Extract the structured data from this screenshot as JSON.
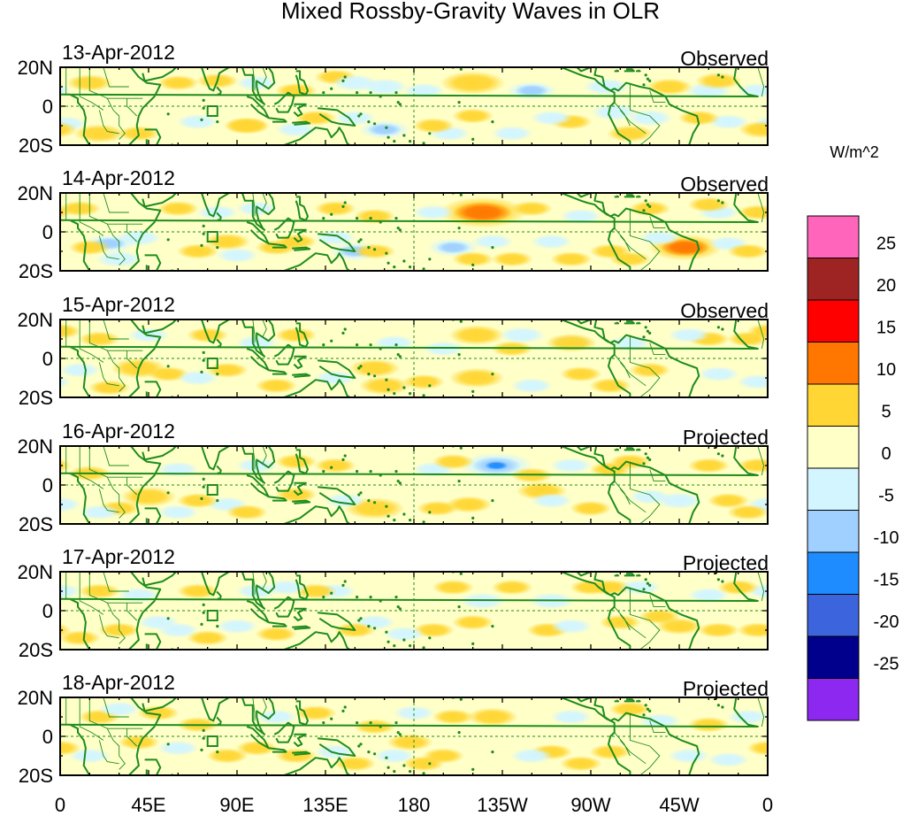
{
  "title": "Mixed Rossby-Gravity Waves in OLR",
  "colorbar": {
    "units": "W/m^2",
    "tick_labels": [
      "25",
      "20",
      "15",
      "10",
      "5",
      "0",
      "-5",
      "-10",
      "-15",
      "-20",
      "-25"
    ],
    "colors": [
      "#ff66bb",
      "#9e2424",
      "#ff0000",
      "#ff7700",
      "#ffd633",
      "#ffffc8",
      "#d2f5ff",
      "#a0d0ff",
      "#1e8cff",
      "#3c64dc",
      "#00008c",
      "#8c28f0"
    ]
  },
  "panels": [
    {
      "date": "13-Apr-2012",
      "status": "Observed"
    },
    {
      "date": "14-Apr-2012",
      "status": "Observed"
    },
    {
      "date": "15-Apr-2012",
      "status": "Observed"
    },
    {
      "date": "16-Apr-2012",
      "status": "Projected"
    },
    {
      "date": "17-Apr-2012",
      "status": "Projected"
    },
    {
      "date": "18-Apr-2012",
      "status": "Projected"
    }
  ],
  "lat_labels": [
    "20N",
    "0",
    "20S"
  ],
  "lon_labels": [
    "0",
    "45E",
    "90E",
    "135E",
    "180",
    "135W",
    "90W",
    "45W",
    "0"
  ],
  "anomalies": [
    [
      [
        140,
        15,
        3
      ],
      [
        150,
        12,
        -4
      ],
      [
        165,
        10,
        -4
      ],
      [
        165,
        -12,
        -5
      ],
      [
        -60,
        -6,
        -4
      ],
      [
        -78,
        -3,
        -4
      ],
      [
        -162,
        -14,
        -3
      ],
      [
        -150,
        12,
        8
      ],
      [
        -120,
        8,
        -5
      ],
      [
        -82,
        10,
        -4
      ],
      [
        -100,
        -8,
        3
      ],
      [
        -30,
        8,
        -4
      ],
      [
        -25,
        13,
        4
      ],
      [
        -20,
        -8,
        -3
      ],
      [
        -110,
        -6,
        -3
      ],
      [
        150,
        -6,
        -3
      ],
      [
        120,
        -12,
        -3
      ],
      [
        95,
        -10,
        3
      ],
      [
        15,
        12,
        4
      ],
      [
        20,
        -14,
        5
      ],
      [
        40,
        -14,
        3
      ],
      [
        3,
        -9,
        -3
      ],
      [
        -5,
        8,
        -3
      ],
      [
        -3,
        -12,
        4
      ],
      [
        60,
        12,
        3
      ],
      [
        80,
        13,
        3
      ],
      [
        70,
        -8,
        -3
      ],
      [
        100,
        12,
        -3
      ],
      [
        120,
        8,
        3
      ],
      [
        130,
        -6,
        3
      ],
      [
        95,
        -10,
        4
      ],
      [
        -35,
        -6,
        3
      ],
      [
        -70,
        -14,
        4
      ],
      [
        -50,
        10,
        4
      ],
      [
        -150,
        -5,
        3
      ],
      [
        -130,
        -14,
        -3
      ],
      [
        -170,
        -10,
        3
      ],
      [
        -175,
        8,
        -3
      ]
    ],
    [
      [
        -145,
        10,
        13
      ],
      [
        -160,
        -8,
        -5
      ],
      [
        -140,
        -5,
        -3
      ],
      [
        -110,
        -5,
        -3
      ],
      [
        -95,
        8,
        -3
      ],
      [
        -120,
        12,
        3
      ],
      [
        -42,
        -8,
        10
      ],
      [
        -55,
        -3,
        -3
      ],
      [
        -20,
        -6,
        -3
      ],
      [
        -25,
        10,
        -3
      ],
      [
        150,
        -10,
        -5
      ],
      [
        140,
        -3,
        -3
      ],
      [
        140,
        12,
        3
      ],
      [
        160,
        8,
        3
      ],
      [
        160,
        -10,
        3
      ],
      [
        120,
        -5,
        3
      ],
      [
        100,
        12,
        -3
      ],
      [
        110,
        -8,
        3
      ],
      [
        85,
        -5,
        4
      ],
      [
        40,
        -3,
        -4
      ],
      [
        25,
        -6,
        -5
      ],
      [
        10,
        12,
        3
      ],
      [
        15,
        -8,
        3
      ],
      [
        30,
        -14,
        -4
      ],
      [
        60,
        12,
        3
      ],
      [
        70,
        -10,
        3
      ],
      [
        80,
        10,
        -3
      ],
      [
        90,
        -12,
        -3
      ],
      [
        -5,
        10,
        3
      ],
      [
        -10,
        -10,
        3
      ],
      [
        -80,
        -10,
        3
      ],
      [
        -70,
        -14,
        3
      ],
      [
        -30,
        14,
        3
      ],
      [
        -150,
        -14,
        3
      ],
      [
        -170,
        10,
        -3
      ],
      [
        -100,
        -14,
        3
      ],
      [
        -130,
        -14,
        3
      ],
      [
        -60,
        12,
        3
      ]
    ],
    [
      [
        -148,
        12,
        6
      ],
      [
        -125,
        12,
        -4
      ],
      [
        -148,
        -10,
        6
      ],
      [
        -165,
        5,
        -3
      ],
      [
        -130,
        5,
        3
      ],
      [
        -100,
        8,
        -3
      ],
      [
        -100,
        8,
        5
      ],
      [
        -95,
        -8,
        3
      ],
      [
        -70,
        8,
        -3
      ],
      [
        -60,
        -6,
        3
      ],
      [
        -30,
        10,
        3
      ],
      [
        -25,
        -8,
        -3
      ],
      [
        40,
        -5,
        6
      ],
      [
        55,
        -8,
        3
      ],
      [
        70,
        -10,
        -3
      ],
      [
        85,
        -6,
        3
      ],
      [
        100,
        8,
        -3
      ],
      [
        120,
        12,
        3
      ],
      [
        140,
        -10,
        -3
      ],
      [
        160,
        -5,
        5
      ],
      [
        165,
        -14,
        5
      ],
      [
        170,
        8,
        -3
      ],
      [
        20,
        10,
        3
      ],
      [
        10,
        -6,
        -3
      ],
      [
        0,
        14,
        3
      ],
      [
        -10,
        10,
        3
      ],
      [
        25,
        -15,
        3
      ],
      [
        45,
        12,
        -3
      ],
      [
        75,
        12,
        3
      ],
      [
        110,
        -14,
        3
      ],
      [
        -5,
        -12,
        -3
      ],
      [
        -40,
        12,
        -3
      ],
      [
        -175,
        -12,
        3
      ],
      [
        -80,
        -14,
        3
      ],
      [
        -120,
        -14,
        -3
      ]
    ],
    [
      [
        -138,
        10,
        -10
      ],
      [
        -120,
        5,
        3
      ],
      [
        -115,
        -3,
        5
      ],
      [
        -152,
        -10,
        4
      ],
      [
        -168,
        -12,
        3
      ],
      [
        -100,
        10,
        -3
      ],
      [
        -110,
        -8,
        -3
      ],
      [
        -80,
        8,
        3
      ],
      [
        -60,
        -6,
        -3
      ],
      [
        -45,
        -8,
        -4
      ],
      [
        -30,
        10,
        3
      ],
      [
        -20,
        -8,
        3
      ],
      [
        160,
        -12,
        7
      ],
      [
        145,
        -8,
        -3
      ],
      [
        140,
        10,
        3
      ],
      [
        120,
        -5,
        3
      ],
      [
        100,
        10,
        -3
      ],
      [
        85,
        -10,
        -3
      ],
      [
        60,
        8,
        -3
      ],
      [
        70,
        -8,
        3
      ],
      [
        45,
        -6,
        6
      ],
      [
        30,
        -12,
        3
      ],
      [
        15,
        6,
        3
      ],
      [
        20,
        -14,
        -3
      ],
      [
        -5,
        10,
        3
      ],
      [
        0,
        -10,
        -3
      ],
      [
        -70,
        12,
        3
      ],
      [
        -90,
        -12,
        3
      ],
      [
        -170,
        8,
        -3
      ],
      [
        -160,
        12,
        3
      ],
      [
        120,
        12,
        3
      ],
      [
        95,
        -14,
        3
      ],
      [
        60,
        -14,
        -3
      ],
      [
        -10,
        -14,
        3
      ]
    ],
    [
      [
        -145,
        5,
        -4
      ],
      [
        -110,
        5,
        -4
      ],
      [
        -112,
        -10,
        3
      ],
      [
        -150,
        -6,
        3
      ],
      [
        -170,
        -10,
        3
      ],
      [
        -100,
        -8,
        -3
      ],
      [
        -80,
        12,
        3
      ],
      [
        -75,
        -6,
        3
      ],
      [
        -55,
        -3,
        3
      ],
      [
        -45,
        -8,
        4
      ],
      [
        -30,
        8,
        -3
      ],
      [
        -25,
        -10,
        3
      ],
      [
        160,
        -6,
        -3
      ],
      [
        150,
        -10,
        3
      ],
      [
        140,
        10,
        -3
      ],
      [
        130,
        10,
        3
      ],
      [
        110,
        -12,
        3
      ],
      [
        100,
        10,
        -3
      ],
      [
        90,
        -8,
        -3
      ],
      [
        70,
        10,
        3
      ],
      [
        60,
        -10,
        -3
      ],
      [
        50,
        -6,
        -3
      ],
      [
        40,
        8,
        -3
      ],
      [
        30,
        -10,
        3
      ],
      [
        20,
        10,
        3
      ],
      [
        10,
        -14,
        3
      ],
      [
        0,
        10,
        -3
      ],
      [
        -5,
        -10,
        3
      ],
      [
        -160,
        12,
        3
      ],
      [
        -130,
        12,
        3
      ],
      [
        175,
        -12,
        -3
      ],
      [
        -90,
        12,
        3
      ],
      [
        -65,
        12,
        -3
      ],
      [
        -15,
        12,
        3
      ],
      [
        75,
        -14,
        3
      ],
      [
        115,
        12,
        -3
      ]
    ],
    [
      [
        -140,
        10,
        5
      ],
      [
        -165,
        -10,
        3
      ],
      [
        -160,
        10,
        3
      ],
      [
        178,
        -3,
        4
      ],
      [
        170,
        -10,
        -3
      ],
      [
        160,
        5,
        3
      ],
      [
        140,
        -8,
        -3
      ],
      [
        120,
        -10,
        3
      ],
      [
        110,
        10,
        -3
      ],
      [
        100,
        -6,
        3
      ],
      [
        85,
        -10,
        3
      ],
      [
        70,
        6,
        3
      ],
      [
        60,
        -6,
        -3
      ],
      [
        40,
        -3,
        3
      ],
      [
        20,
        10,
        3
      ],
      [
        15,
        -10,
        -3
      ],
      [
        0,
        -6,
        3
      ],
      [
        -10,
        10,
        -3
      ],
      [
        -40,
        -10,
        -3
      ],
      [
        -30,
        6,
        3
      ],
      [
        -55,
        8,
        -3
      ],
      [
        -80,
        -8,
        3
      ],
      [
        -100,
        10,
        -3
      ],
      [
        -110,
        -8,
        3
      ],
      [
        -120,
        -10,
        -3
      ],
      [
        -95,
        -14,
        3
      ],
      [
        -70,
        14,
        3
      ],
      [
        -20,
        -12,
        -3
      ],
      [
        30,
        14,
        -3
      ],
      [
        50,
        12,
        3
      ],
      [
        130,
        12,
        3
      ],
      [
        150,
        -14,
        3
      ],
      [
        -180,
        12,
        -3
      ],
      [
        -175,
        -14,
        3
      ]
    ]
  ]
}
